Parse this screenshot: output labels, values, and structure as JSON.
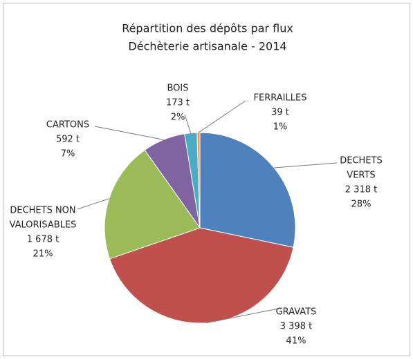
{
  "chart_data": {
    "type": "pie",
    "title": [
      "Répartition des dépôts par flux",
      "Déchèterie artisanale - 2014"
    ],
    "categories": [
      [
        "DECHETS",
        "VERTS"
      ],
      [
        "GRAVATS"
      ],
      [
        "DECHETS NON",
        "VALORISABLES"
      ],
      [
        "CARTONS"
      ],
      [
        "BOIS"
      ],
      [
        "FERRAILLES"
      ]
    ],
    "values": [
      2318,
      3398,
      1678,
      592,
      173,
      39
    ],
    "value_labels": [
      "2 318 t",
      "3 398 t",
      "1 678 t",
      "592 t",
      "173 t",
      "39 t"
    ],
    "percents": [
      28,
      41,
      21,
      7,
      2,
      1
    ],
    "percent_labels": [
      "28%",
      "41%",
      "21%",
      "7%",
      "2%",
      "1%"
    ],
    "colors": [
      "#4f81bd",
      "#c0504d",
      "#9bbb59",
      "#8064a2",
      "#4bacc6",
      "#f79646"
    ]
  }
}
